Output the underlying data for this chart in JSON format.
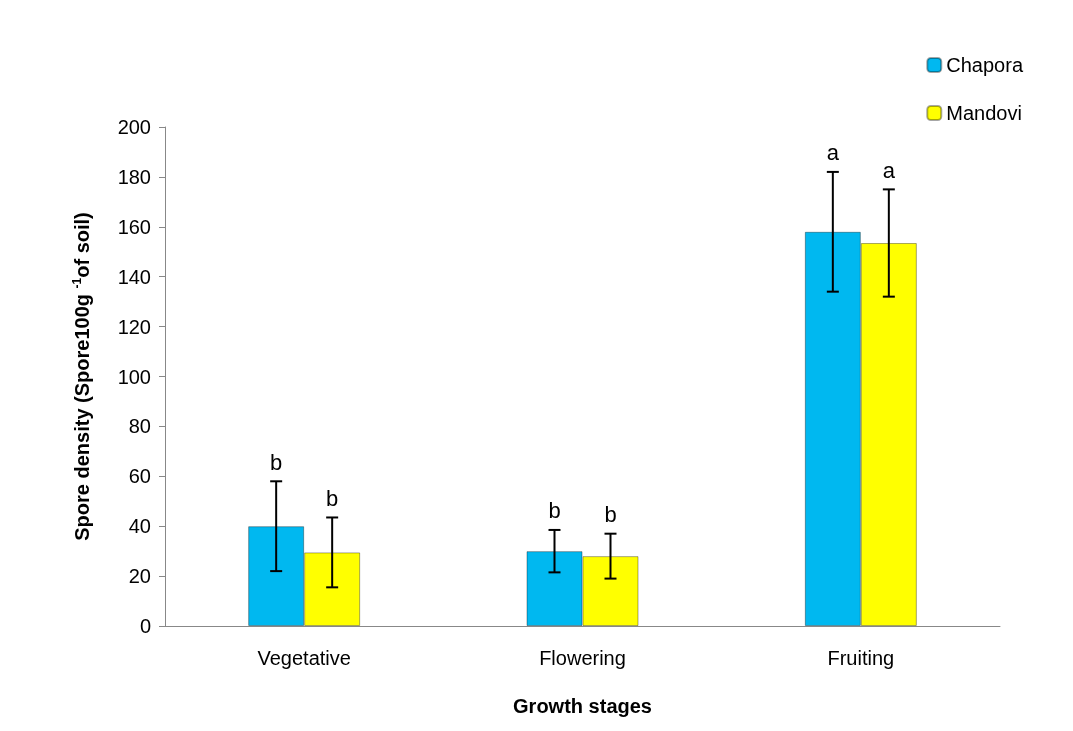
{
  "chart_data": {
    "type": "bar",
    "xlabel": "Growth stages",
    "ylabel": "Spore density (Spore100g $^{-1}$of soil)",
    "categories": [
      "Vegetative",
      "Flowering",
      "Fruiting"
    ],
    "series": [
      {
        "name": "Chapora",
        "color": "#00b8f0",
        "values": [
          40,
          30,
          158
        ],
        "errors": [
          18,
          8.5,
          24
        ]
      },
      {
        "name": "Mandovi",
        "color": "#ffff00",
        "values": [
          29.5,
          28,
          153.5
        ],
        "errors": [
          14,
          9,
          21.5
        ]
      }
    ],
    "ylim": [
      0,
      200
    ],
    "yticks": [
      0,
      20,
      40,
      60,
      80,
      100,
      120,
      140,
      160,
      180,
      200
    ],
    "grid": false,
    "legend": "top right",
    "annotations": [
      "b",
      "b",
      "b",
      "b",
      "a",
      "a"
    ]
  }
}
